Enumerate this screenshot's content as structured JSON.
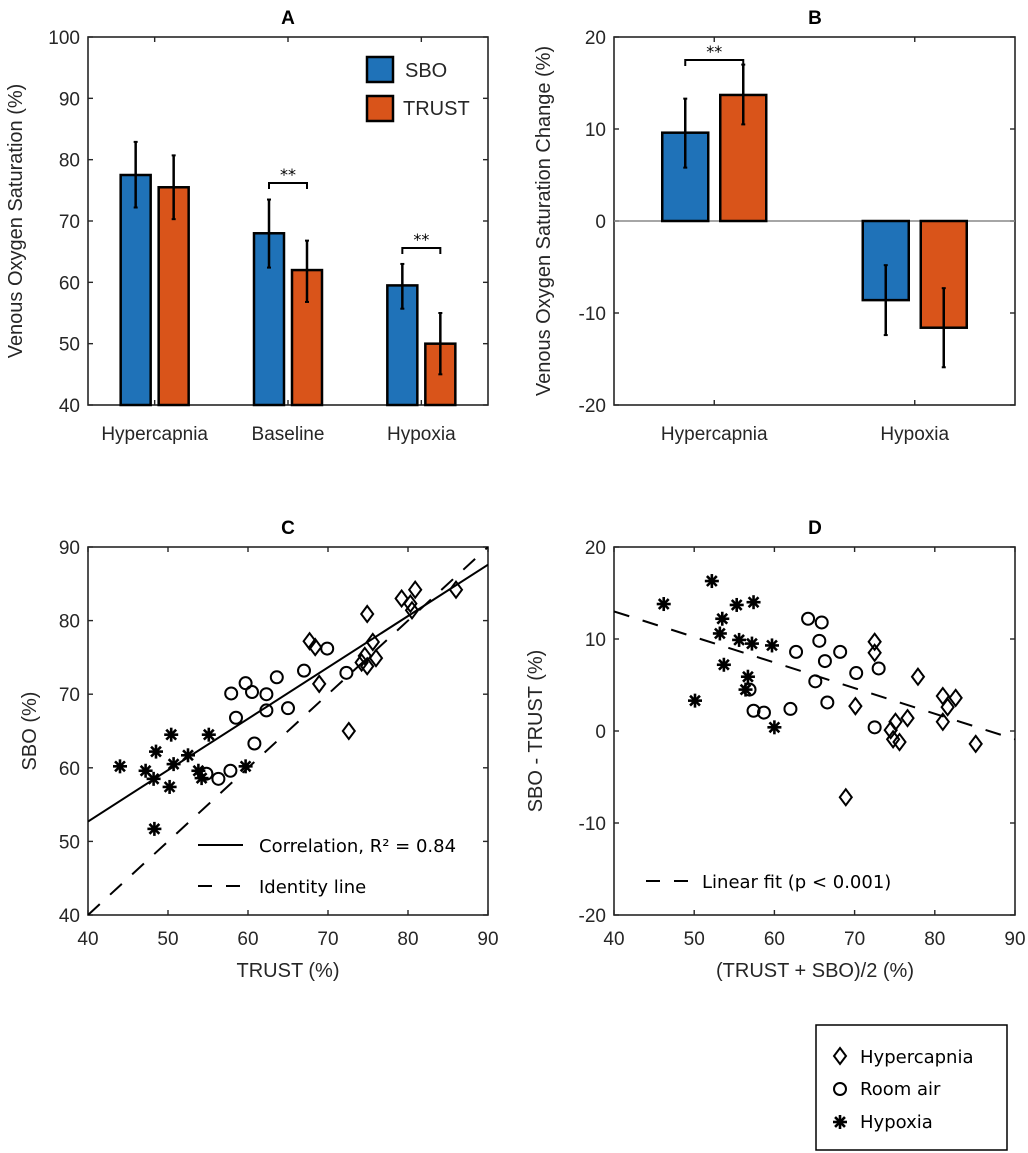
{
  "chart_data": [
    {
      "id": "A",
      "type": "bar",
      "title": "A",
      "xlabel": "",
      "ylabel": "Venous Oxygen Saturation (%)",
      "ylim": [
        40,
        100
      ],
      "yticks": [
        40,
        50,
        60,
        70,
        80,
        90,
        100
      ],
      "categories": [
        "Hypercapnia",
        "Baseline",
        "Hypoxia"
      ],
      "series": [
        {
          "name": "SBO",
          "color": "#1f72b8",
          "values": [
            77.5,
            68.0,
            59.5
          ],
          "err_low": [
            72.2,
            62.4,
            55.7
          ],
          "err_high": [
            82.9,
            73.5,
            63.0
          ]
        },
        {
          "name": "TRUST",
          "color": "#d9541a",
          "values": [
            75.5,
            62.0,
            50.0
          ],
          "err_low": [
            70.3,
            56.8,
            45.0
          ],
          "err_high": [
            80.7,
            66.8,
            55.0
          ]
        }
      ],
      "significance": [
        {
          "category": "Baseline",
          "label": "**",
          "bracket_y": 76.2
        },
        {
          "category": "Hypoxia",
          "label": "**",
          "bracket_y": 65.6
        }
      ],
      "legend": {
        "placement": "top-right",
        "entries": [
          "SBO",
          "TRUST"
        ]
      },
      "grid": false
    },
    {
      "id": "B",
      "type": "bar",
      "title": "B",
      "xlabel": "",
      "ylabel": "Venous Oxygen Saturation Change (%)",
      "ylim": [
        -20,
        20
      ],
      "yticks": [
        -20,
        -10,
        0,
        10,
        20
      ],
      "categories": [
        "Hypercapnia",
        "Hypoxia"
      ],
      "series": [
        {
          "name": "SBO",
          "color": "#1f72b8",
          "values": [
            9.6,
            -8.6
          ],
          "err_low": [
            5.8,
            -12.4
          ],
          "err_high": [
            13.3,
            -4.8
          ]
        },
        {
          "name": "TRUST",
          "color": "#d9541a",
          "values": [
            13.7,
            -11.6
          ],
          "err_low": [
            10.5,
            -15.9
          ],
          "err_high": [
            17.0,
            -7.3
          ]
        }
      ],
      "significance": [
        {
          "category": "Hypercapnia",
          "label": "**",
          "bracket_y": 17.5
        }
      ],
      "zero_line": true,
      "grid": false
    },
    {
      "id": "C",
      "type": "scatter",
      "title": "C",
      "xlabel": "TRUST (%)",
      "ylabel": "SBO (%)",
      "xlim": [
        40,
        90
      ],
      "ylim": [
        40,
        90
      ],
      "xticks": [
        40,
        50,
        60,
        70,
        80,
        90
      ],
      "yticks": [
        40,
        50,
        60,
        70,
        80,
        90
      ],
      "series": [
        {
          "name": "Hypercapnia",
          "marker": "diamond",
          "points": [
            [
              67.7,
              77.2
            ],
            [
              68.4,
              76.4
            ],
            [
              68.9,
              71.4
            ],
            [
              72.6,
              65.0
            ],
            [
              74.2,
              74.3
            ],
            [
              74.6,
              75.2
            ],
            [
              74.9,
              73.8
            ],
            [
              74.9,
              80.9
            ],
            [
              75.6,
              77.1
            ],
            [
              76.0,
              74.9
            ],
            [
              79.2,
              83.0
            ],
            [
              80.3,
              82.3
            ],
            [
              80.5,
              81.4
            ],
            [
              80.9,
              84.2
            ],
            [
              86.0,
              84.2
            ]
          ]
        },
        {
          "name": "Room air",
          "marker": "circle",
          "points": [
            [
              54.8,
              59.2
            ],
            [
              56.3,
              58.5
            ],
            [
              57.8,
              59.6
            ],
            [
              57.9,
              70.1
            ],
            [
              58.5,
              66.8
            ],
            [
              59.7,
              71.5
            ],
            [
              60.5,
              70.3
            ],
            [
              60.8,
              63.3
            ],
            [
              62.3,
              70.0
            ],
            [
              62.3,
              67.8
            ],
            [
              63.6,
              72.3
            ],
            [
              65.0,
              68.1
            ],
            [
              67.0,
              73.2
            ],
            [
              69.9,
              76.2
            ],
            [
              72.3,
              72.9
            ]
          ]
        },
        {
          "name": "Hypoxia",
          "marker": "asterisk",
          "points": [
            [
              44.0,
              60.2
            ],
            [
              47.2,
              59.6
            ],
            [
              48.2,
              58.5
            ],
            [
              48.5,
              62.2
            ],
            [
              48.3,
              51.7
            ],
            [
              50.2,
              57.4
            ],
            [
              50.4,
              64.5
            ],
            [
              50.7,
              60.5
            ],
            [
              52.5,
              61.7
            ],
            [
              53.8,
              59.6
            ],
            [
              54.2,
              58.6
            ],
            [
              55.1,
              64.5
            ],
            [
              59.7,
              60.2
            ]
          ]
        }
      ],
      "lines": [
        {
          "name": "Correlation, R² = 0.84",
          "style": "solid",
          "x": [
            40,
            90
          ],
          "y": [
            52.7,
            87.6
          ]
        },
        {
          "name": "Identity line",
          "style": "dashed",
          "x": [
            40,
            90
          ],
          "y": [
            40,
            90
          ]
        }
      ],
      "legend": {
        "placement": "bottom-right",
        "entries": [
          "Correlation, R² = 0.84",
          "Identity line"
        ]
      },
      "grid": false
    },
    {
      "id": "D",
      "type": "scatter",
      "title": "D",
      "xlabel": "(TRUST + SBO)/2 (%)",
      "ylabel": "SBO - TRUST (%)",
      "xlim": [
        40,
        90
      ],
      "ylim": [
        -20,
        20
      ],
      "xticks": [
        40,
        50,
        60,
        70,
        80,
        90
      ],
      "yticks": [
        -20,
        -10,
        0,
        10,
        20
      ],
      "series": [
        {
          "name": "Hypercapnia",
          "marker": "diamond",
          "points": [
            [
              68.9,
              -7.2
            ],
            [
              70.1,
              2.7
            ],
            [
              72.5,
              9.7
            ],
            [
              72.5,
              8.5
            ],
            [
              74.5,
              0.1
            ],
            [
              74.8,
              -0.9
            ],
            [
              75.1,
              1.0
            ],
            [
              75.6,
              -1.2
            ],
            [
              76.6,
              1.4
            ],
            [
              77.9,
              5.9
            ],
            [
              81.0,
              3.8
            ],
            [
              81.0,
              1.0
            ],
            [
              81.6,
              2.6
            ],
            [
              82.6,
              3.6
            ],
            [
              85.1,
              -1.4
            ]
          ]
        },
        {
          "name": "Room air",
          "marker": "circle",
          "points": [
            [
              56.9,
              4.5
            ],
            [
              57.4,
              2.2
            ],
            [
              58.7,
              2.0
            ],
            [
              62.0,
              2.4
            ],
            [
              62.7,
              8.6
            ],
            [
              64.2,
              12.2
            ],
            [
              65.1,
              5.4
            ],
            [
              65.6,
              9.8
            ],
            [
              65.9,
              11.8
            ],
            [
              66.3,
              7.6
            ],
            [
              66.6,
              3.1
            ],
            [
              68.2,
              8.6
            ],
            [
              70.2,
              6.3
            ],
            [
              72.5,
              0.4
            ],
            [
              73.0,
              6.8
            ]
          ]
        },
        {
          "name": "Hypoxia",
          "marker": "asterisk",
          "points": [
            [
              46.2,
              13.8
            ],
            [
              52.2,
              16.3
            ],
            [
              53.2,
              10.6
            ],
            [
              53.5,
              12.2
            ],
            [
              53.7,
              7.2
            ],
            [
              55.3,
              13.7
            ],
            [
              55.6,
              9.9
            ],
            [
              57.2,
              9.5
            ],
            [
              56.7,
              5.9
            ],
            [
              56.4,
              4.5
            ],
            [
              57.4,
              14.0
            ],
            [
              59.7,
              9.3
            ],
            [
              60.0,
              0.4
            ],
            [
              50.1,
              3.3
            ]
          ]
        }
      ],
      "lines": [
        {
          "name": "Linear fit (p < 0.001)",
          "style": "dashed",
          "x": [
            40,
            90
          ],
          "y": [
            13.0,
            -0.9
          ]
        }
      ],
      "legend": {
        "placement": "bottom-left",
        "entries": [
          "Linear fit (p < 0.001)"
        ]
      },
      "grid": false
    }
  ],
  "shared_legend": {
    "placement": "bottom-right",
    "entries": [
      {
        "marker": "diamond",
        "label": "Hypercapnia"
      },
      {
        "marker": "circle",
        "label": "Room air"
      },
      {
        "marker": "asterisk",
        "label": "Hypoxia"
      }
    ]
  }
}
